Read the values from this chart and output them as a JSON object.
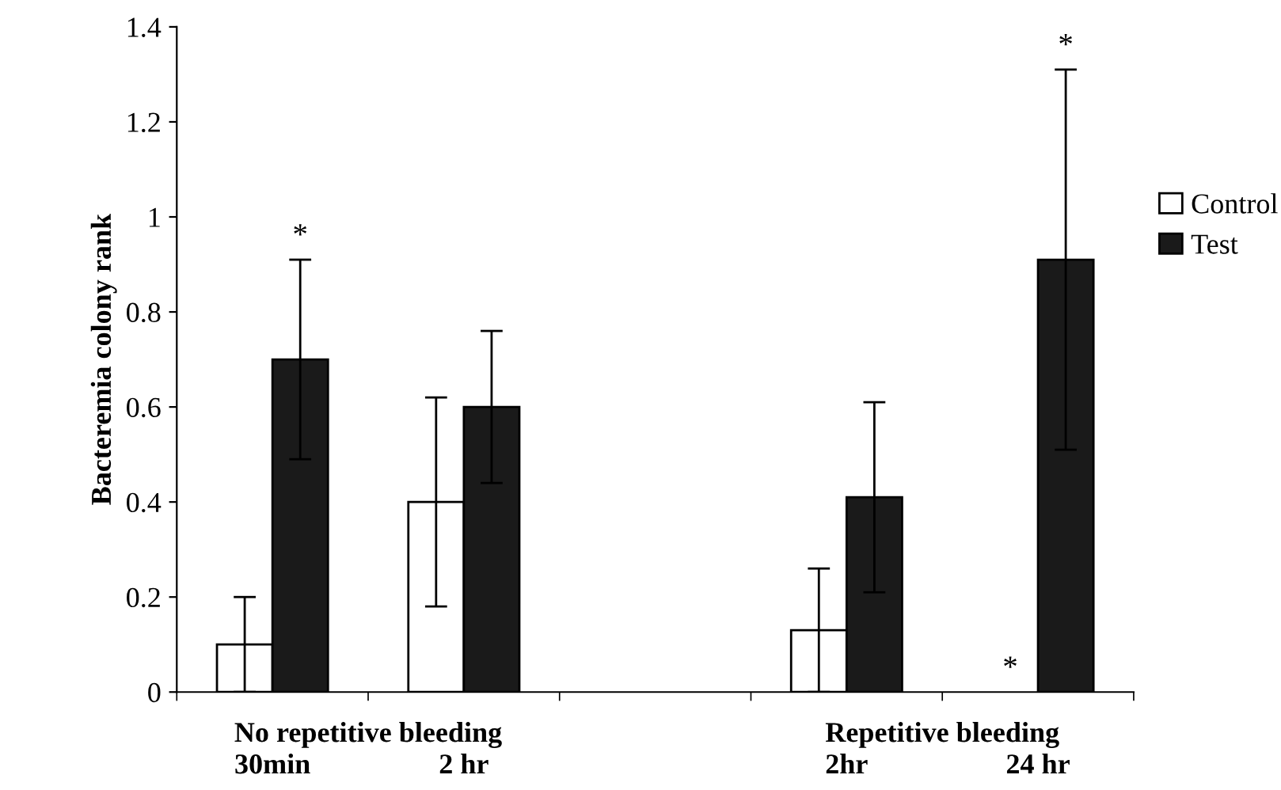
{
  "chart_data": {
    "type": "bar",
    "ylabel": "Bacteremia colony rank",
    "categories": [
      "30min",
      "2 hr",
      null,
      "2hr",
      "24 hr"
    ],
    "series": [
      {
        "name": "Control",
        "color": "#ffffff",
        "values": [
          0.1,
          0.4,
          null,
          0.13,
          0
        ],
        "errors": [
          0.1,
          0.22,
          null,
          0.13,
          null
        ]
      },
      {
        "name": "Test",
        "color": "#1a1a1a",
        "values": [
          0.7,
          0.6,
          null,
          0.41,
          0.91
        ],
        "errors": [
          0.21,
          0.16,
          null,
          0.2,
          0.4
        ]
      }
    ],
    "ylim": [
      0,
      1.4
    ],
    "yticks": [
      0,
      0.2,
      0.4,
      0.6,
      0.8,
      1,
      1.2,
      1.4
    ],
    "annotations": [
      "No repetitive bleeding",
      "Repetitive bleeding",
      "*",
      "*",
      {
        "text": "*",
        "x": "24 hr",
        "y": 0
      }
    ],
    "legend": "right",
    "grid": false
  }
}
